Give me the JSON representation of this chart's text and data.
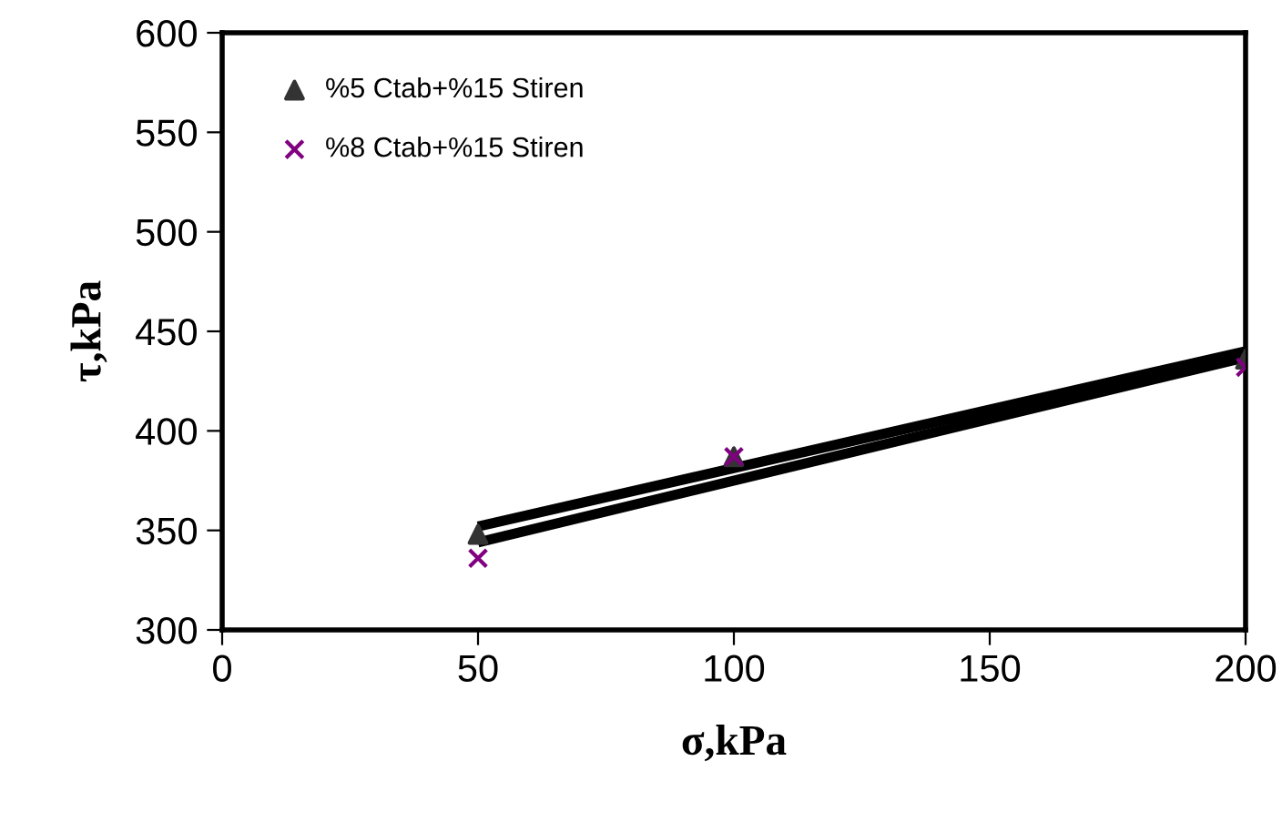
{
  "chart_data": {
    "type": "scatter",
    "xlabel": "σ,kPa",
    "ylabel": "τ,kPa",
    "xlim": [
      0,
      200
    ],
    "xticks": [
      0,
      50,
      100,
      150,
      200
    ],
    "ylim": [
      300,
      600
    ],
    "yticks": [
      300,
      350,
      400,
      450,
      500,
      550,
      600
    ],
    "grid": false,
    "legend": "top left",
    "series": [
      {
        "name": "%5 Ctab+%15 Stiren",
        "color": "#333333",
        "marker": "triangle",
        "x": [
          50,
          100,
          200
        ],
        "values": [
          348,
          387,
          436
        ]
      },
      {
        "name": "%8 Ctab+%15 Stiren",
        "color": "#800080",
        "marker": "cross",
        "x": [
          50,
          100,
          200
        ],
        "values": [
          336,
          387,
          432
        ]
      },
      {
        "type": "line",
        "color": "#000000",
        "marker": "none",
        "x": [
          50,
          200
        ],
        "values": [
          352,
          440
        ]
      },
      {
        "type": "line",
        "color": "#000000",
        "marker": "none",
        "x": [
          50,
          200
        ],
        "values": [
          344,
          437
        ]
      }
    ]
  }
}
